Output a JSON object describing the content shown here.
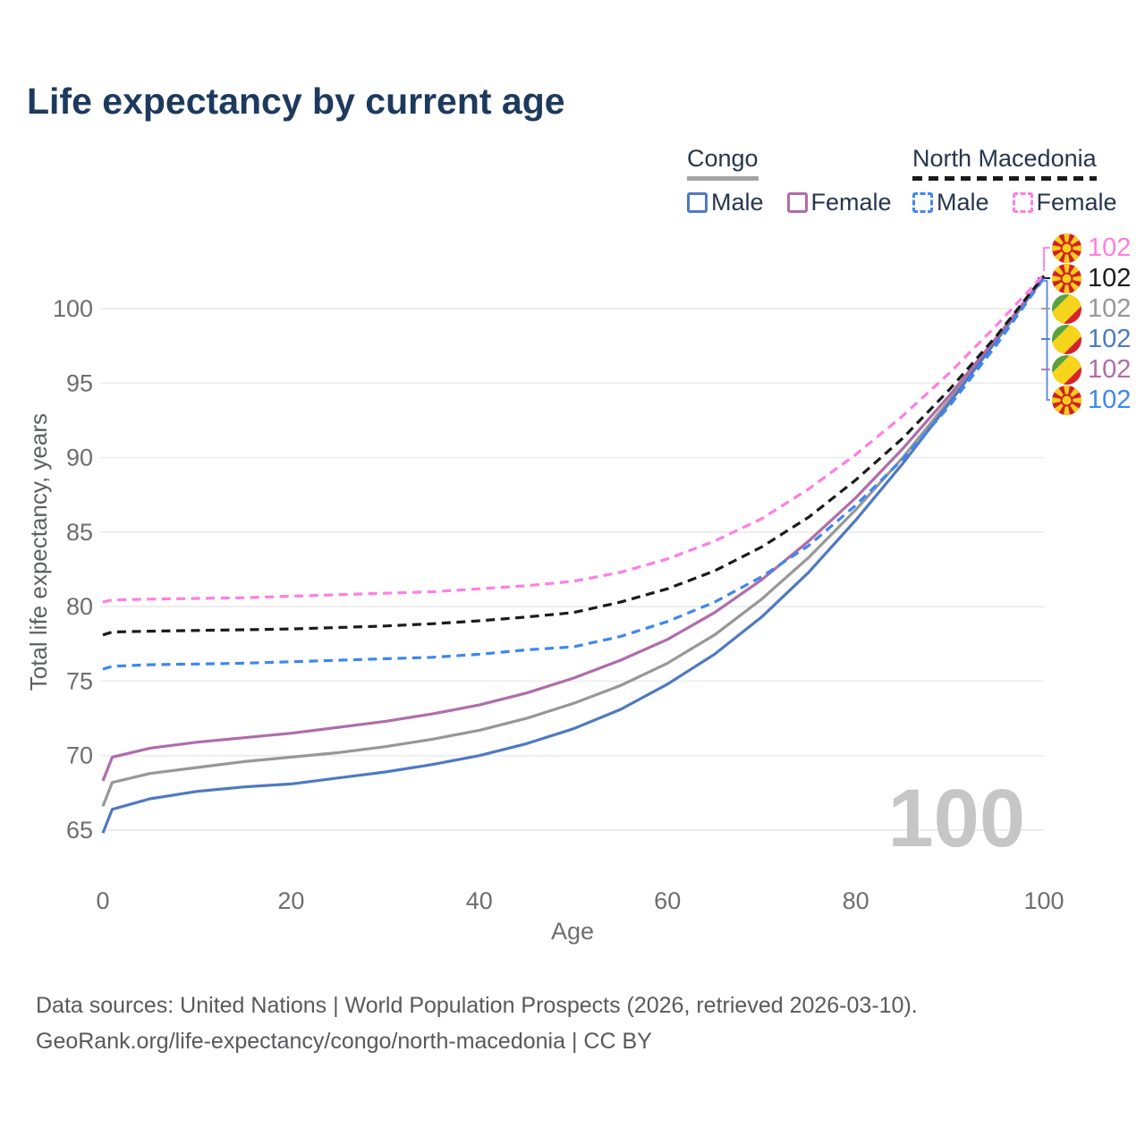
{
  "title": "Life expectancy by current age",
  "legend": {
    "groups": [
      {
        "id": "congo",
        "label": "Congo",
        "line_style": "solid",
        "line_color": "#a3a3a3",
        "items": [
          {
            "label": "Male",
            "color": "#4e79c2",
            "dashed": false
          },
          {
            "label": "Female",
            "color": "#b06cab",
            "dashed": false
          }
        ]
      },
      {
        "id": "north-macedonia",
        "label": "North Macedonia",
        "line_style": "dashed",
        "line_color": "#1b1b1b",
        "items": [
          {
            "label": "Male",
            "color": "#3d87f0",
            "dashed": true
          },
          {
            "label": "Female",
            "color": "#ff7ee3",
            "dashed": true
          }
        ]
      }
    ]
  },
  "axes": {
    "y_title": "Total life expectancy, years",
    "x_title": "Age"
  },
  "watermark": "100",
  "end_labels": [
    {
      "flag": "north-macedonia",
      "series": "North Macedonia Female",
      "value": "102",
      "color": "#ff7ee3"
    },
    {
      "flag": "north-macedonia",
      "series": "North Macedonia Both sexes",
      "value": "102",
      "color": "#1b1b1b"
    },
    {
      "flag": "congo",
      "series": "Congo Both sexes",
      "value": "102",
      "color": "#979797"
    },
    {
      "flag": "congo",
      "series": "Congo Male",
      "value": "102",
      "color": "#4e79c2"
    },
    {
      "flag": "congo",
      "series": "Congo Female",
      "value": "102",
      "color": "#b06cab"
    },
    {
      "flag": "north-macedonia",
      "series": "North Macedonia Male",
      "value": "102",
      "color": "#3d87f0"
    }
  ],
  "flags": {
    "north_macedonia": {
      "red": "#d02027",
      "yellow": "#f8ce1a"
    },
    "congo": {
      "green": "#5aa13f",
      "yellow": "#f6d41b",
      "red": "#d5232e"
    }
  },
  "footer": {
    "line1": "Data sources: United Nations | World Population Prospects (2026, retrieved 2026-03-10).",
    "line2": "GeoRank.org/life-expectancy/congo/north-macedonia | CC BY"
  },
  "chart_data": {
    "type": "line",
    "title": "Life expectancy by current age",
    "xlabel": "Age",
    "ylabel": "Total life expectancy, years",
    "xlim": [
      0,
      100
    ],
    "ylim": [
      63,
      103
    ],
    "x_ticks": [
      0,
      20,
      40,
      60,
      80,
      100
    ],
    "y_ticks": [
      65,
      70,
      75,
      80,
      85,
      90,
      95,
      100
    ],
    "grid": "horizontal",
    "legend_position": "top-right",
    "x": [
      0,
      1,
      5,
      10,
      15,
      20,
      25,
      30,
      35,
      40,
      45,
      50,
      55,
      60,
      65,
      70,
      75,
      80,
      85,
      90,
      95,
      100
    ],
    "series": [
      {
        "name": "Congo Male",
        "country": "Congo",
        "sex": "Male",
        "color": "#4e79c2",
        "style": "solid",
        "values": [
          64.8,
          66.4,
          67.1,
          67.6,
          67.9,
          68.1,
          68.5,
          68.9,
          69.4,
          70.0,
          70.8,
          71.8,
          73.1,
          74.8,
          76.8,
          79.3,
          82.3,
          85.8,
          89.6,
          93.7,
          97.9,
          102.1
        ]
      },
      {
        "name": "Congo Female",
        "country": "Congo",
        "sex": "Female",
        "color": "#b06cab",
        "style": "solid",
        "values": [
          68.3,
          69.9,
          70.5,
          70.9,
          71.2,
          71.5,
          71.9,
          72.3,
          72.8,
          73.4,
          74.2,
          75.2,
          76.4,
          77.8,
          79.6,
          81.8,
          84.4,
          87.3,
          90.6,
          94.2,
          98.1,
          102.15
        ]
      },
      {
        "name": "Congo Both sexes",
        "country": "Congo",
        "sex": "Both",
        "color": "#979797",
        "style": "solid",
        "values": [
          66.6,
          68.2,
          68.8,
          69.2,
          69.6,
          69.9,
          70.2,
          70.6,
          71.1,
          71.7,
          72.5,
          73.5,
          74.7,
          76.2,
          78.1,
          80.5,
          83.3,
          86.5,
          90.0,
          93.9,
          98.0,
          102.1
        ]
      },
      {
        "name": "North Macedonia Male",
        "country": "North Macedonia",
        "sex": "Male",
        "color": "#3d87f0",
        "style": "dashed",
        "values": [
          75.8,
          76.0,
          76.1,
          76.15,
          76.2,
          76.3,
          76.4,
          76.5,
          76.6,
          76.8,
          77.1,
          77.3,
          78.0,
          79.0,
          80.3,
          82.0,
          84.1,
          86.8,
          89.9,
          93.5,
          97.6,
          102.05
        ]
      },
      {
        "name": "North Macedonia Female",
        "country": "North Macedonia",
        "sex": "Female",
        "color": "#ff7ee3",
        "style": "dashed",
        "values": [
          80.3,
          80.45,
          80.5,
          80.55,
          80.6,
          80.7,
          80.8,
          80.9,
          81.0,
          81.2,
          81.4,
          81.7,
          82.3,
          83.2,
          84.4,
          85.9,
          87.9,
          90.2,
          92.8,
          95.7,
          98.9,
          102.3
        ]
      },
      {
        "name": "North Macedonia Both sexes",
        "country": "North Macedonia",
        "sex": "Both",
        "color": "#1b1b1b",
        "style": "dashed",
        "values": [
          78.1,
          78.3,
          78.35,
          78.4,
          78.45,
          78.5,
          78.6,
          78.7,
          78.85,
          79.05,
          79.3,
          79.6,
          80.3,
          81.2,
          82.4,
          84.0,
          86.0,
          88.5,
          91.3,
          94.6,
          98.2,
          102.2
        ]
      }
    ],
    "end_value_label": "102"
  }
}
